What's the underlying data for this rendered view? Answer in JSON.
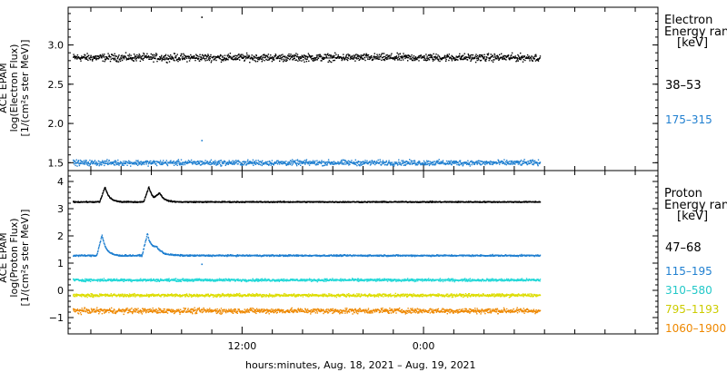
{
  "page": {
    "x_caption": "hours:minutes, Aug. 18, 2021 – Aug. 19, 2021"
  },
  "colors": {
    "black": "#000000",
    "blue": "#1f7fd0",
    "cyan": "#22d8d8",
    "yellow": "#dddd00",
    "orange": "#ee8800"
  },
  "chart_data": [
    {
      "type": "scatter",
      "panel": "electron",
      "ylabel_lines": [
        "ACE EPAM",
        "log(Electron Flux)",
        "[1/(cm²s ster MeV)]"
      ],
      "yticks": [
        "3.0",
        "2.5",
        "2.0",
        "1.5"
      ],
      "yticks_values": [
        3.0,
        2.5,
        2.0,
        1.5
      ],
      "ylim": [
        1.4,
        3.48
      ],
      "xlim": [
        0,
        39
      ],
      "xticks": [
        "12:00",
        "0:00"
      ],
      "xticks_hours": [
        11.5,
        23.5
      ],
      "legend_title": [
        "Electron",
        "Energy ran",
        "[keV]"
      ],
      "series": [
        {
          "name": "38–53",
          "color_key": "black",
          "start": 0.3,
          "end": 31.2,
          "base": 2.84,
          "noise": 0.07,
          "spikes": [
            {
              "x": 8.8,
              "y": 3.35
            }
          ]
        },
        {
          "name": "175–315",
          "color_key": "blue",
          "start": 0.3,
          "end": 31.2,
          "base": 1.5,
          "noise": 0.05,
          "spikes": [
            {
              "x": 8.8,
              "y": 1.78
            }
          ]
        }
      ]
    },
    {
      "type": "scatter",
      "panel": "proton",
      "ylabel_lines": [
        "ACE EPAM",
        "log(Proton Flux)",
        "[1/(cm²s ster MeV)]"
      ],
      "yticks": [
        "4",
        "3",
        "2",
        "1",
        "0",
        "−1"
      ],
      "yticks_values": [
        4,
        3,
        2,
        1,
        0,
        -1
      ],
      "ylim": [
        -1.6,
        4.4
      ],
      "xlim": [
        0,
        39
      ],
      "xticks": [
        "12:00",
        "0:00"
      ],
      "xticks_hours": [
        11.5,
        23.5
      ],
      "legend_title": [
        "Proton",
        "Energy ran",
        "[keV]"
      ],
      "series": [
        {
          "name": "47–68",
          "color_key": "black",
          "start": 0.3,
          "end": 31.2,
          "base": 3.25,
          "noise": 0.03,
          "bumps": [
            {
              "x": 2.4,
              "h": 0.55,
              "w": 0.35
            },
            {
              "x": 5.3,
              "h": 0.55,
              "w": 0.35
            },
            {
              "x": 6.0,
              "h": 0.3,
              "w": 0.4
            }
          ]
        },
        {
          "name": "115–195",
          "color_key": "blue",
          "start": 0.3,
          "end": 31.2,
          "base": 1.28,
          "noise": 0.04,
          "bumps": [
            {
              "x": 2.2,
              "h": 0.75,
              "w": 0.35
            },
            {
              "x": 5.2,
              "h": 0.8,
              "w": 0.35
            },
            {
              "x": 5.8,
              "h": 0.25,
              "w": 0.6
            }
          ],
          "spikes": [
            {
              "x": 8.8,
              "y": 0.95
            }
          ]
        },
        {
          "name": "310–580",
          "color_key": "cyan",
          "start": 0.3,
          "end": 31.2,
          "base": 0.38,
          "noise": 0.07
        },
        {
          "name": "795–1193",
          "color_key": "yellow",
          "start": 0.3,
          "end": 31.2,
          "base": -0.18,
          "noise": 0.08
        },
        {
          "name": "1060–1900",
          "color_key": "orange",
          "start": 0.3,
          "end": 31.2,
          "base": -0.75,
          "noise": 0.14
        }
      ]
    }
  ]
}
